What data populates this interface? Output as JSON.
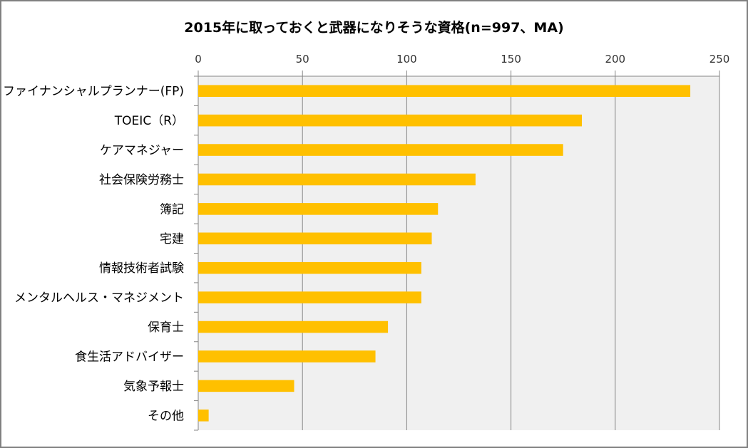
{
  "chart_data": {
    "type": "bar",
    "orientation": "horizontal",
    "title": "2015年に取っておくと武器になりそうな資格(n=997、MA)",
    "xlabel": "",
    "ylabel": "",
    "xlim": [
      0,
      250
    ],
    "ticks": [
      0,
      50,
      100,
      150,
      200,
      250
    ],
    "tick_labels": [
      "0",
      "50",
      "100",
      "150",
      "200",
      "250"
    ],
    "grid": true,
    "categories": [
      "ファイナンシャルプランナー(FP)",
      "TOEIC（R）",
      "ケアマネジャー",
      "社会保険労務士",
      "簿記",
      "宅建",
      "情報技術者試験",
      "メンタルヘルス・マネジメント",
      "保育士",
      "食生活アドバイザー",
      "気象予報士",
      "その他"
    ],
    "values": [
      236,
      184,
      175,
      133,
      115,
      112,
      107,
      107,
      91,
      85,
      46,
      5
    ],
    "colors": {
      "bar": "#FFC000",
      "plot_bg": "#F0F0F0",
      "grid": "#868686"
    }
  }
}
